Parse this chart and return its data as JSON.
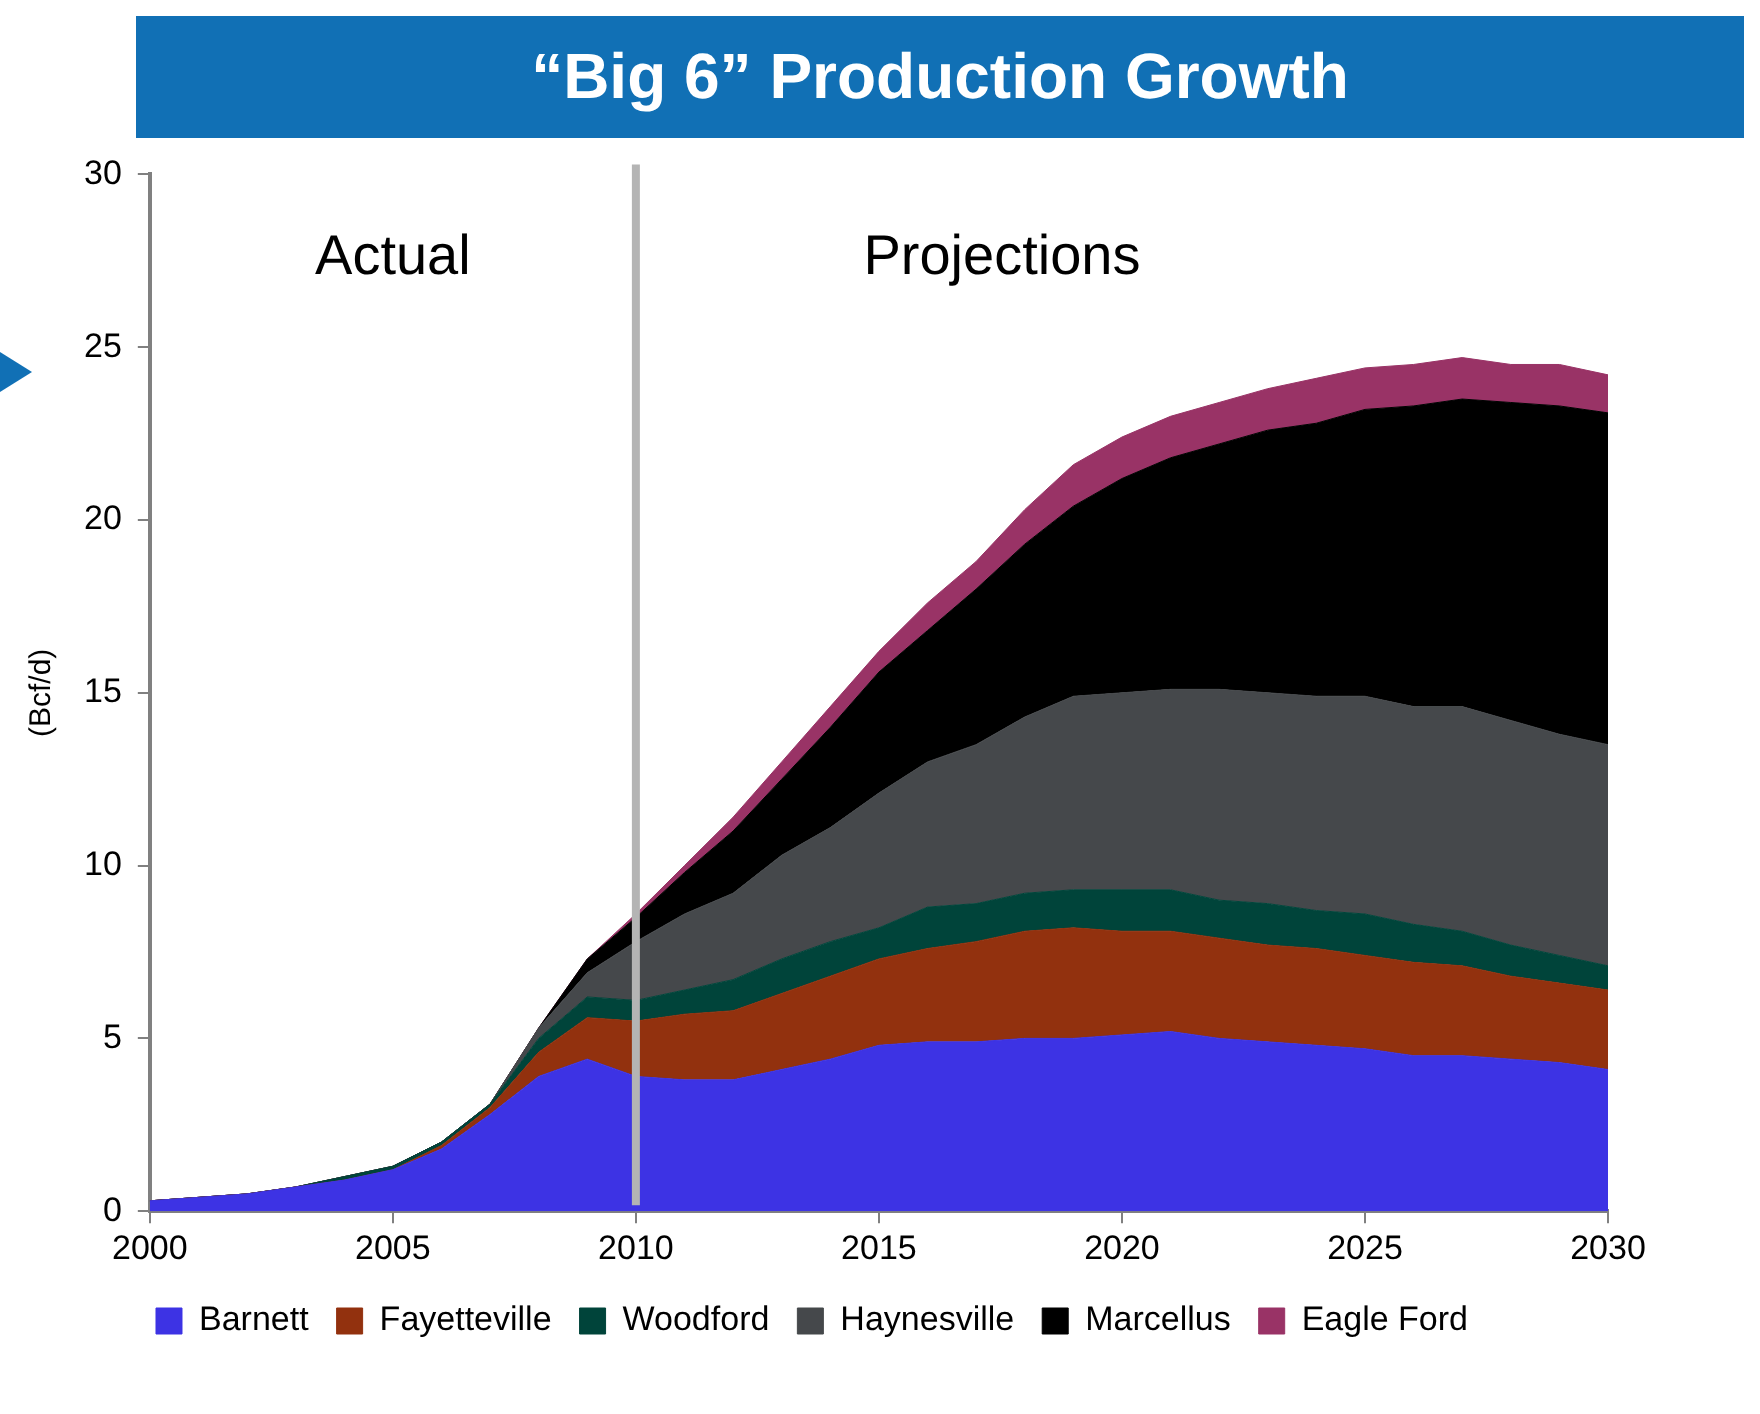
{
  "chart_data": {
    "type": "area",
    "stacked": true,
    "title": "“Big 6” Production Growth",
    "ylabel": "(Bcf/d)",
    "x": [
      2000,
      2001,
      2002,
      2003,
      2004,
      2005,
      2006,
      2007,
      2008,
      2009,
      2010,
      2011,
      2012,
      2013,
      2014,
      2015,
      2016,
      2017,
      2018,
      2019,
      2020,
      2021,
      2022,
      2023,
      2024,
      2025,
      2026,
      2027,
      2028,
      2029,
      2030
    ],
    "xlim": [
      2000,
      2030
    ],
    "xticks": [
      2000,
      2005,
      2010,
      2015,
      2020,
      2025,
      2030
    ],
    "ylim": [
      0,
      30
    ],
    "yticks": [
      0,
      5,
      10,
      15,
      20,
      25,
      30
    ],
    "grid": false,
    "legend": "bottom",
    "series": [
      {
        "name": "Barnett",
        "color": "#3d33e4",
        "values": [
          0.3,
          0.4,
          0.5,
          0.7,
          0.9,
          1.2,
          1.8,
          2.8,
          3.9,
          4.4,
          3.9,
          3.8,
          3.8,
          4.1,
          4.4,
          4.8,
          4.9,
          4.9,
          5.0,
          5.0,
          5.1,
          5.2,
          5.0,
          4.9,
          4.8,
          4.7,
          4.5,
          4.5,
          4.4,
          4.3,
          4.1
        ]
      },
      {
        "name": "Fayetteville",
        "color": "#92310e",
        "values": [
          0,
          0,
          0,
          0,
          0,
          0,
          0.1,
          0.2,
          0.7,
          1.2,
          1.6,
          1.9,
          2.0,
          2.2,
          2.4,
          2.5,
          2.7,
          2.9,
          3.1,
          3.2,
          3.0,
          2.9,
          2.9,
          2.8,
          2.8,
          2.7,
          2.7,
          2.6,
          2.4,
          2.3,
          2.3
        ]
      },
      {
        "name": "Woodford",
        "color": "#00443a",
        "values": [
          0,
          0,
          0,
          0,
          0.1,
          0.1,
          0.1,
          0.1,
          0.4,
          0.6,
          0.6,
          0.7,
          0.9,
          1.0,
          1.0,
          0.9,
          1.2,
          1.1,
          1.1,
          1.1,
          1.2,
          1.2,
          1.1,
          1.2,
          1.1,
          1.2,
          1.1,
          1.0,
          0.9,
          0.8,
          0.7
        ]
      },
      {
        "name": "Haynesville",
        "color": "#45484b",
        "values": [
          0,
          0,
          0,
          0,
          0,
          0,
          0,
          0,
          0.3,
          0.7,
          1.7,
          2.2,
          2.5,
          3.0,
          3.3,
          3.9,
          4.2,
          4.6,
          5.1,
          5.6,
          5.7,
          5.8,
          6.1,
          6.1,
          6.2,
          6.3,
          6.3,
          6.5,
          6.5,
          6.4,
          6.4
        ]
      },
      {
        "name": "Marcellus",
        "color": "#000000",
        "values": [
          0,
          0,
          0,
          0,
          0,
          0,
          0,
          0,
          0,
          0.4,
          0.7,
          1.2,
          1.8,
          2.2,
          2.9,
          3.5,
          3.8,
          4.5,
          5.0,
          5.5,
          6.2,
          6.7,
          7.1,
          7.6,
          7.9,
          8.3,
          8.7,
          8.9,
          9.2,
          9.5,
          9.6
        ]
      },
      {
        "name": "Eagle Ford",
        "color": "#993366",
        "values": [
          0,
          0,
          0,
          0,
          0,
          0,
          0,
          0,
          0,
          0,
          0.1,
          0.2,
          0.4,
          0.5,
          0.6,
          0.6,
          0.8,
          0.8,
          1.0,
          1.2,
          1.2,
          1.2,
          1.2,
          1.2,
          1.3,
          1.2,
          1.2,
          1.2,
          1.1,
          1.2,
          1.1
        ]
      }
    ],
    "ref_lines": [
      {
        "axis": "x",
        "value": 2010,
        "color": "#b4b4b4"
      }
    ],
    "annotations": [
      "Actual",
      "Projections"
    ]
  }
}
